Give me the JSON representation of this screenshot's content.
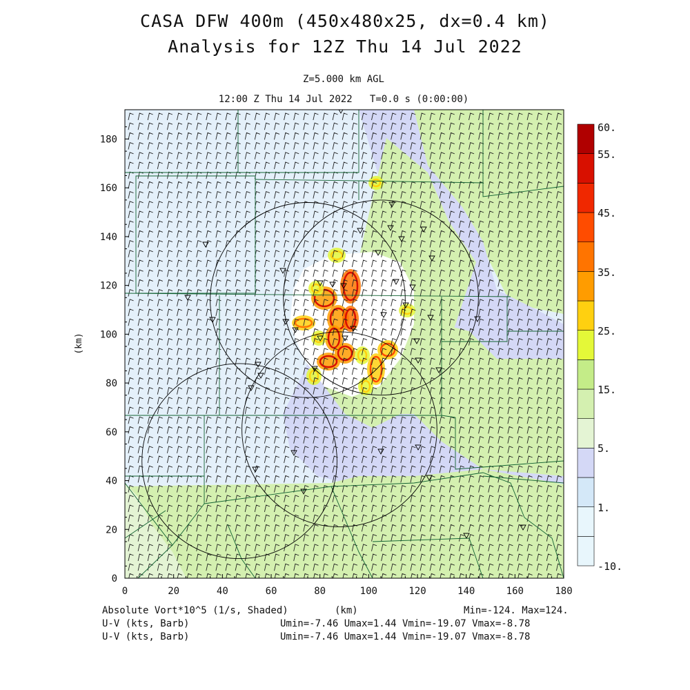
{
  "title": {
    "line1": "CASA DFW 400m (450x480x25, dx=0.4 km)",
    "line2": "Analysis for 12Z Thu 14 Jul 2022"
  },
  "subtitle": {
    "level": "Z=5.000 km AGL",
    "time": "12:00 Z Thu 14 Jul 2022   T=0.0 s (0:00:00)"
  },
  "axes": {
    "x_unit": "(km)",
    "y_unit": "(km)",
    "x_range": [
      0,
      180
    ],
    "y_range": [
      0,
      192
    ],
    "x_ticks": [
      "0",
      "20",
      "40",
      "60",
      "80",
      "100",
      "120",
      "140",
      "160",
      "180"
    ],
    "y_ticks": [
      "0",
      "20",
      "40",
      "60",
      "80",
      "100",
      "120",
      "140",
      "160",
      "180"
    ]
  },
  "colorbar": {
    "labels": [
      "60.",
      "55.",
      "45.",
      "35.",
      "25.",
      "15.",
      "5.",
      "1.",
      "-10."
    ],
    "colors": [
      "#e8f6fc",
      "#d4e8f8",
      "#d4d8f6",
      "#e4f4d4",
      "#d4f0b0",
      "#c4ec88",
      "#e4f838",
      "#ffd010",
      "#ff9c00",
      "#ff7400",
      "#ff4c00",
      "#f02800",
      "#d81000",
      "#b00000"
    ]
  },
  "footer": {
    "field": "Absolute Vort*10^5 (1/s, Shaded)",
    "x_label": "(km)",
    "minmax": "Min=-124. Max=124.",
    "wind1_label": "U-V (kts, Barb)",
    "wind1_range": "Umin=-7.46 Umax=1.44 Vmin=-19.07 Vmax=-8.78",
    "wind2_label": "U-V (kts, Barb)",
    "wind2_range": "Umin=-7.46 Umax=1.44 Vmin=-19.07 Vmax=-8.78"
  },
  "map": {
    "colors": {
      "green_fill": "#d4f0b0",
      "light_green": "#e4f4d4",
      "light_blue": "#e4f0fa",
      "lavender": "#d4d8f6",
      "boundary": "#106030"
    },
    "radar_rings": [
      {
        "center_km": [
          75,
          114
        ],
        "radius_km": 40
      },
      {
        "center_km": [
          105,
          115
        ],
        "radius_km": 40
      },
      {
        "center_km": [
          88,
          61
        ],
        "radius_km": 40
      },
      {
        "center_km": [
          47,
          48
        ],
        "radius_km": 40
      }
    ]
  }
}
